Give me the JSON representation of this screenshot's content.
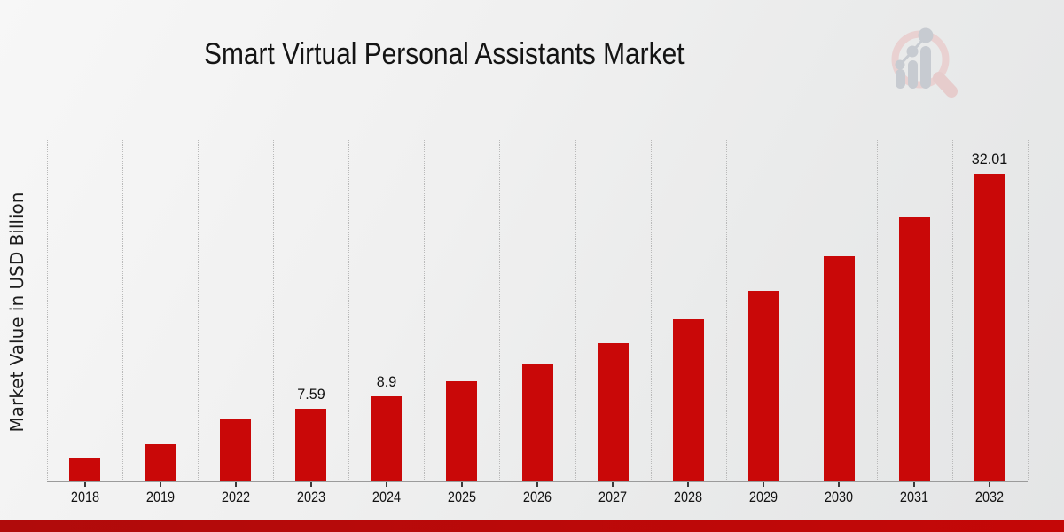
{
  "header": {
    "logo_icon": "magnifier-bar-chart-logo"
  },
  "colors": {
    "bar": "#c90808",
    "footer_bar_left": "#b00b0b",
    "footer_bar_right": "#c40707",
    "background_top": "#f7f7f7",
    "background_bottom": "#e4e5e6",
    "axis_line": "#9b9b9b",
    "gridline": "#b9b9b9",
    "logo_ring_pink": "#e9d1d1",
    "logo_chart_gray": "#c7cbd1"
  },
  "chart_data": {
    "type": "bar",
    "title": "Smart Virtual Personal Assistants Market",
    "xlabel": "",
    "ylabel": "Market Value in USD Billion",
    "categories": [
      "2018",
      "2019",
      "2022",
      "2023",
      "2024",
      "2025",
      "2026",
      "2027",
      "2028",
      "2029",
      "2030",
      "2031",
      "2032"
    ],
    "values": [
      2.4,
      3.9,
      6.5,
      7.59,
      8.9,
      10.4,
      12.3,
      14.4,
      16.9,
      19.8,
      23.4,
      27.5,
      32.01
    ],
    "data_labels": [
      "",
      "",
      "",
      "7.59",
      "8.9",
      "",
      "",
      "",
      "",
      "",
      "",
      "",
      "32.01"
    ],
    "ylim": [
      0,
      35.6
    ],
    "grid": "vertical-dotted",
    "legend_position": "none",
    "bar_color": "#c90808"
  }
}
